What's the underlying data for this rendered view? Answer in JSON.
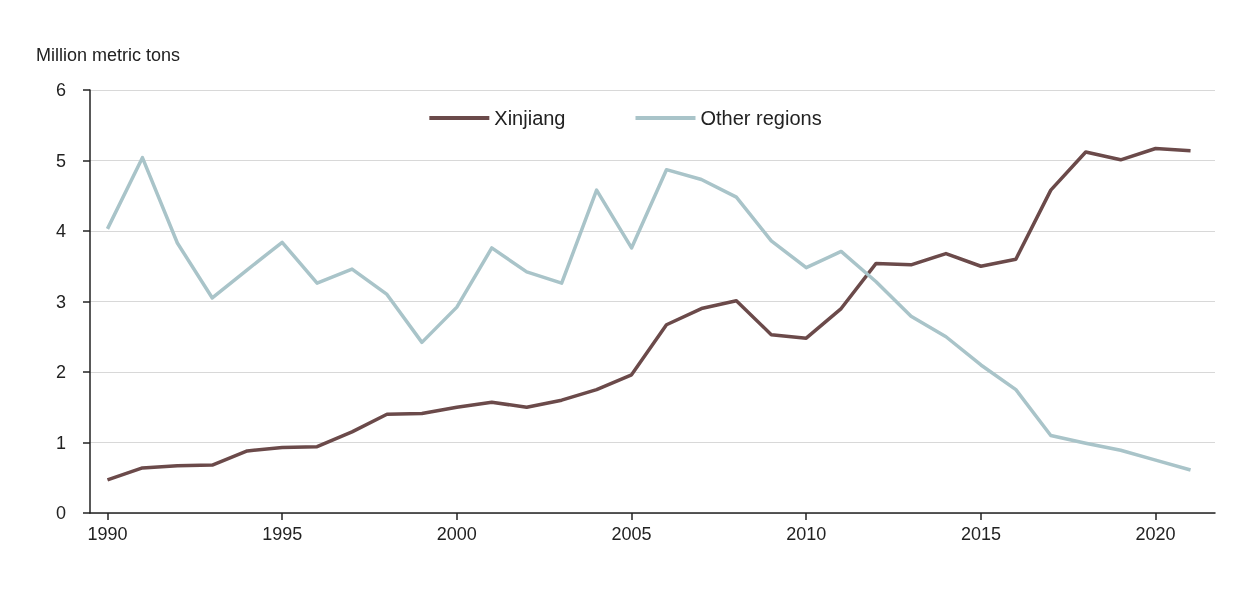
{
  "chart_data": {
    "type": "line",
    "ylabel": "Million metric tons",
    "x": [
      1990,
      1991,
      1992,
      1993,
      1994,
      1995,
      1996,
      1997,
      1998,
      1999,
      2000,
      2001,
      2002,
      2003,
      2004,
      2005,
      2006,
      2007,
      2008,
      2009,
      2010,
      2011,
      2012,
      2013,
      2014,
      2015,
      2016,
      2017,
      2018,
      2019,
      2020,
      2021
    ],
    "series": [
      {
        "name": "Xinjiang",
        "color": "#6b4a4a",
        "values": [
          0.47,
          0.64,
          0.67,
          0.68,
          0.88,
          0.93,
          0.94,
          1.15,
          1.4,
          1.41,
          1.5,
          1.57,
          1.5,
          1.6,
          1.75,
          1.96,
          2.67,
          2.9,
          3.01,
          2.53,
          2.48,
          2.9,
          3.54,
          3.52,
          3.68,
          3.5,
          3.6,
          4.58,
          5.12,
          5.01,
          5.17,
          5.14
        ]
      },
      {
        "name": "Other regions",
        "color": "#a9c4c9",
        "values": [
          4.03,
          5.04,
          3.83,
          3.05,
          3.45,
          3.84,
          3.26,
          3.46,
          3.1,
          2.42,
          2.92,
          3.76,
          3.42,
          3.26,
          4.58,
          3.76,
          4.87,
          4.73,
          4.48,
          3.86,
          3.48,
          3.71,
          3.28,
          2.79,
          2.5,
          2.1,
          1.75,
          1.1,
          0.99,
          0.89,
          0.75,
          0.61
        ]
      }
    ],
    "xlim": [
      1989.5,
      2021.7
    ],
    "xticks": [
      1990,
      1995,
      2000,
      2005,
      2010,
      2015,
      2020
    ],
    "ylim": [
      0,
      6
    ],
    "yticks": [
      0,
      1,
      2,
      3,
      4,
      5,
      6
    ],
    "grid": "y",
    "legend": "top",
    "marker": "none",
    "line_style": "solid"
  }
}
